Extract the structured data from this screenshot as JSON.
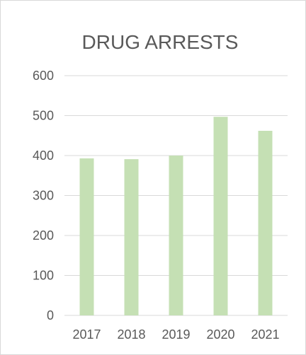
{
  "chart_data": {
    "type": "bar",
    "title": "DRUG ARRESTS",
    "xlabel": "",
    "ylabel": "",
    "categories": [
      "2017",
      "2018",
      "2019",
      "2020",
      "2021"
    ],
    "values": [
      393,
      391,
      400,
      497,
      462
    ],
    "ylim": [
      0,
      600
    ],
    "yticks": [
      0,
      100,
      200,
      300,
      400,
      500,
      600
    ],
    "grid": true,
    "legend": "none",
    "colors": {
      "bar": "#c5e0b4",
      "grid": "#d9d9d9",
      "text": "#595959"
    }
  }
}
